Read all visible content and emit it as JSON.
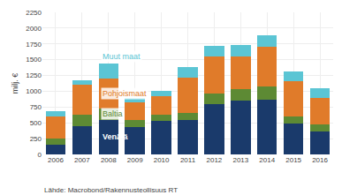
{
  "chart_data": {
    "type": "bar",
    "stacked": true,
    "categories": [
      "2006",
      "2007",
      "2008",
      "2009",
      "2010",
      "2011",
      "2012",
      "2013",
      "2014",
      "2015",
      "2016"
    ],
    "series": [
      {
        "name": "Venäjä",
        "color": "#1a3a6b",
        "values": [
          150,
          450,
          550,
          430,
          530,
          550,
          790,
          850,
          870,
          490,
          370
        ]
      },
      {
        "name": "Baltia",
        "color": "#5d8a34",
        "values": [
          100,
          180,
          180,
          110,
          100,
          100,
          180,
          180,
          200,
          110,
          100
        ]
      },
      {
        "name": "Pohjoismaat",
        "color": "#e07b2a",
        "values": [
          350,
          470,
          470,
          280,
          290,
          570,
          580,
          520,
          640,
          560,
          430
        ]
      },
      {
        "name": "Muut maat",
        "color": "#5bc5d4",
        "values": [
          80,
          80,
          240,
          80,
          80,
          170,
          170,
          180,
          180,
          160,
          150
        ]
      }
    ],
    "ylabel": "milj. €",
    "ylim": [
      0,
      2250
    ],
    "yticks": [
      0,
      250,
      500,
      750,
      1000,
      1250,
      1500,
      1750,
      2000,
      2250
    ],
    "grid": true,
    "annotations": [
      "Lähde: Macrobond/Rakennusteollisuus RT"
    ]
  }
}
